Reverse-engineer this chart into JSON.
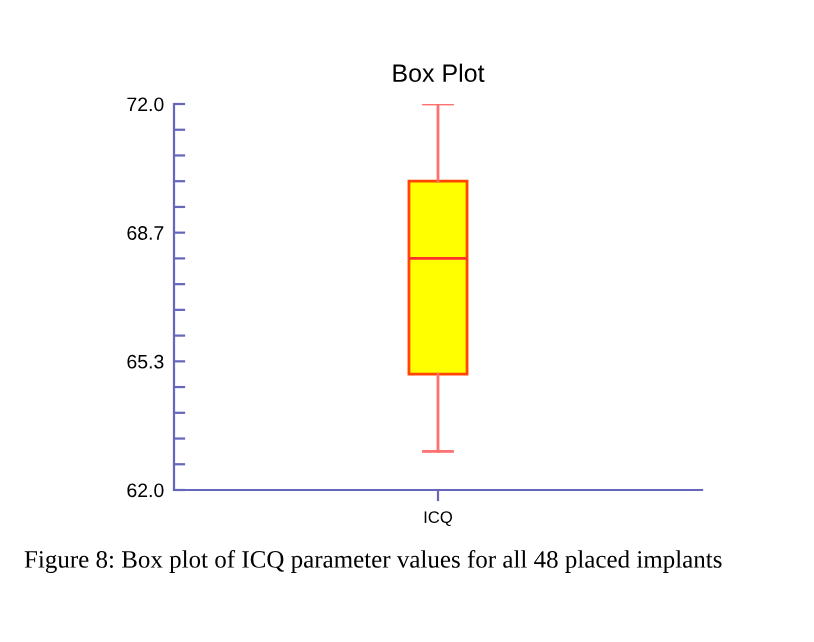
{
  "chart_data": {
    "type": "box",
    "title": "Box Plot",
    "categories": [
      "ICQ"
    ],
    "boxes": [
      {
        "low": 63.0,
        "q1": 65.0,
        "median": 68.0,
        "q3": 70.0,
        "high": 72.0
      }
    ],
    "colors": [
      "#ffff00"
    ],
    "ylim": [
      62.0,
      72.0
    ],
    "yticks": [
      {
        "value": 62.0,
        "label": "62.0"
      },
      {
        "value": 62.667,
        "label": null
      },
      {
        "value": 63.333,
        "label": null
      },
      {
        "value": 64.0,
        "label": null
      },
      {
        "value": 64.667,
        "label": null
      },
      {
        "value": 65.333,
        "label": "65.3"
      },
      {
        "value": 66.0,
        "label": null
      },
      {
        "value": 66.667,
        "label": null
      },
      {
        "value": 67.333,
        "label": null
      },
      {
        "value": 68.0,
        "label": null
      },
      {
        "value": 68.667,
        "label": "68.7"
      },
      {
        "value": 69.333,
        "label": null
      },
      {
        "value": 70.0,
        "label": null
      },
      {
        "value": 70.667,
        "label": null
      },
      {
        "value": 71.333,
        "label": null
      },
      {
        "value": 72.0,
        "label": "72.0"
      }
    ],
    "grid": false,
    "annotations": [
      "Figure 8: Box plot of ICQ parameter values for all 48 placed implants"
    ]
  }
}
